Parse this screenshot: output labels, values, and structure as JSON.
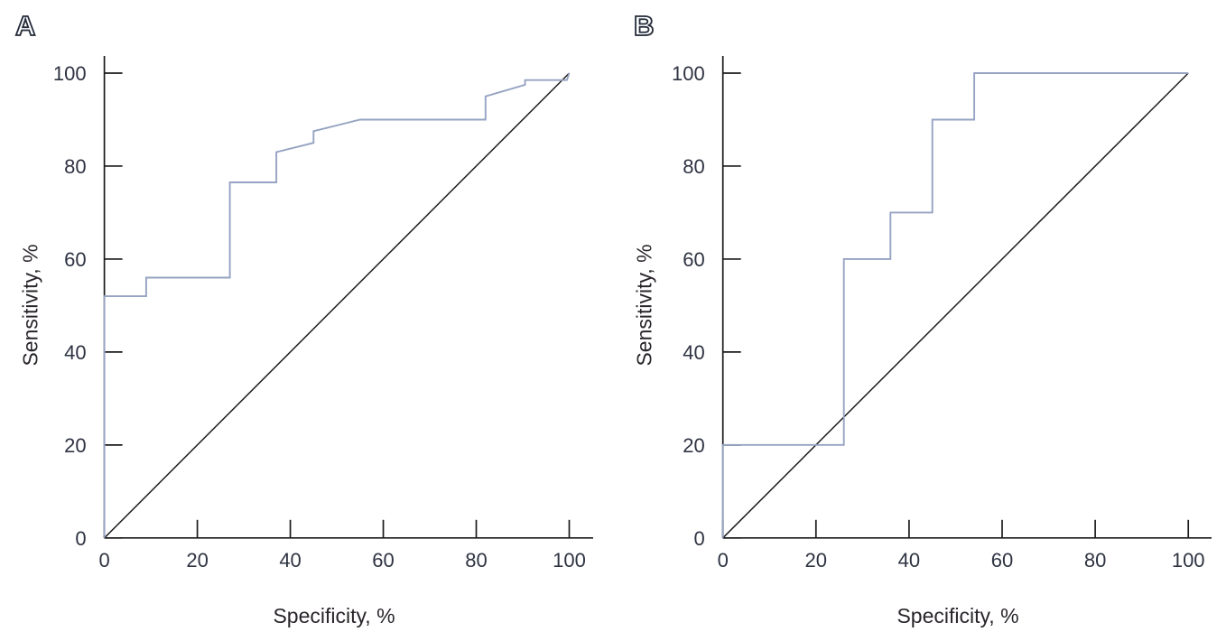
{
  "page": {
    "background": "#ffffff"
  },
  "colors": {
    "curve": "#96a3c2",
    "reference_line": "#1e1e1e",
    "axis": "#1a1a1a",
    "tick_label": "#2e3342",
    "axis_label": "#29252b",
    "panel_letter_fill": "#ffffff",
    "panel_letter_outline": "#232b3b"
  },
  "panels": [
    {
      "letter": "A",
      "x_label": "Specificity, %",
      "y_label": "Sensitivity, %"
    },
    {
      "letter": "B",
      "x_label": "Specificity, %",
      "y_label": "Sensitivity, %"
    }
  ],
  "chart_data": [
    {
      "type": "line",
      "panel": "A",
      "title": "",
      "xlabel": "Specificity, %",
      "ylabel": "Sensitivity, %",
      "xlim": [
        0,
        100
      ],
      "ylim": [
        0,
        100
      ],
      "xticks": [
        0,
        20,
        40,
        60,
        80,
        100
      ],
      "yticks": [
        0,
        20,
        40,
        60,
        80,
        100
      ],
      "grid": false,
      "legend": false,
      "series": [
        {
          "name": "ROC curve",
          "role": "roc",
          "points": [
            [
              0,
              0
            ],
            [
              0,
              52
            ],
            [
              9,
              52
            ],
            [
              9,
              56
            ],
            [
              27,
              56
            ],
            [
              27,
              76.5
            ],
            [
              37,
              76.5
            ],
            [
              37,
              83
            ],
            [
              45,
              85
            ],
            [
              45,
              87.5
            ],
            [
              55,
              90
            ],
            [
              82,
              90
            ],
            [
              82,
              95
            ],
            [
              90.5,
              97.5
            ],
            [
              90.5,
              98.5
            ],
            [
              99.5,
              98.5
            ],
            [
              100,
              100
            ]
          ]
        },
        {
          "name": "Reference diagonal",
          "role": "reference",
          "points": [
            [
              0,
              0
            ],
            [
              100,
              100
            ]
          ]
        }
      ]
    },
    {
      "type": "line",
      "panel": "B",
      "title": "",
      "xlabel": "Specificity, %",
      "ylabel": "Sensitivity, %",
      "xlim": [
        0,
        100
      ],
      "ylim": [
        0,
        100
      ],
      "xticks": [
        0,
        20,
        40,
        60,
        80,
        100
      ],
      "yticks": [
        0,
        20,
        40,
        60,
        80,
        100
      ],
      "grid": false,
      "legend": false,
      "series": [
        {
          "name": "ROC curve",
          "role": "roc",
          "points": [
            [
              0,
              0
            ],
            [
              0,
              20
            ],
            [
              26,
              20
            ],
            [
              26,
              60
            ],
            [
              36,
              60
            ],
            [
              36,
              70
            ],
            [
              45,
              70
            ],
            [
              45,
              90
            ],
            [
              54,
              90
            ],
            [
              54,
              100
            ],
            [
              100,
              100
            ]
          ]
        },
        {
          "name": "Reference diagonal",
          "role": "reference",
          "points": [
            [
              0,
              0
            ],
            [
              100,
              100
            ]
          ]
        }
      ]
    }
  ]
}
